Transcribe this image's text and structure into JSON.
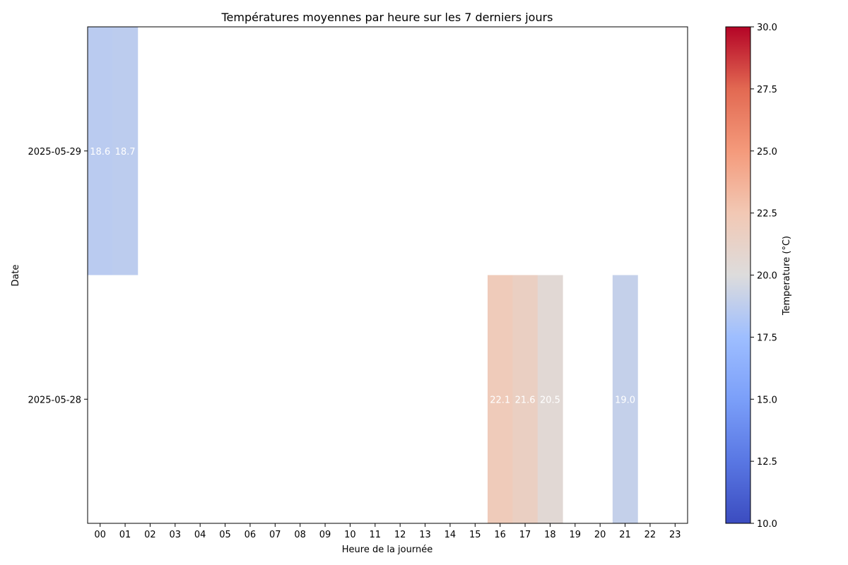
{
  "chart_data": {
    "type": "heatmap",
    "title": "Températures moyennes par heure sur les 7 derniers jours",
    "xlabel": "Heure de la journée",
    "ylabel": "Date",
    "x_categories": [
      "00",
      "01",
      "02",
      "03",
      "04",
      "05",
      "06",
      "07",
      "08",
      "09",
      "10",
      "11",
      "12",
      "13",
      "14",
      "15",
      "16",
      "17",
      "18",
      "19",
      "20",
      "21",
      "22",
      "23"
    ],
    "y_categories": [
      "2025-05-29",
      "2025-05-28"
    ],
    "cells": [
      {
        "date": "2025-05-29",
        "hour": "00",
        "value": 18.6,
        "label": "18.6"
      },
      {
        "date": "2025-05-29",
        "hour": "01",
        "value": 18.7,
        "label": "18.7"
      },
      {
        "date": "2025-05-28",
        "hour": "16",
        "value": 22.1,
        "label": "22.1"
      },
      {
        "date": "2025-05-28",
        "hour": "17",
        "value": 21.6,
        "label": "21.6"
      },
      {
        "date": "2025-05-28",
        "hour": "18",
        "value": 20.5,
        "label": "20.5"
      },
      {
        "date": "2025-05-28",
        "hour": "21",
        "value": 19.0,
        "label": "19.0"
      }
    ],
    "colorbar": {
      "label": "Temperature (°C)",
      "range": [
        10,
        30
      ],
      "colormap": "coolwarm",
      "ticks": [
        "10.0",
        "12.5",
        "15.0",
        "17.5",
        "20.0",
        "22.5",
        "25.0",
        "27.5",
        "30.0"
      ]
    },
    "grid": false
  }
}
